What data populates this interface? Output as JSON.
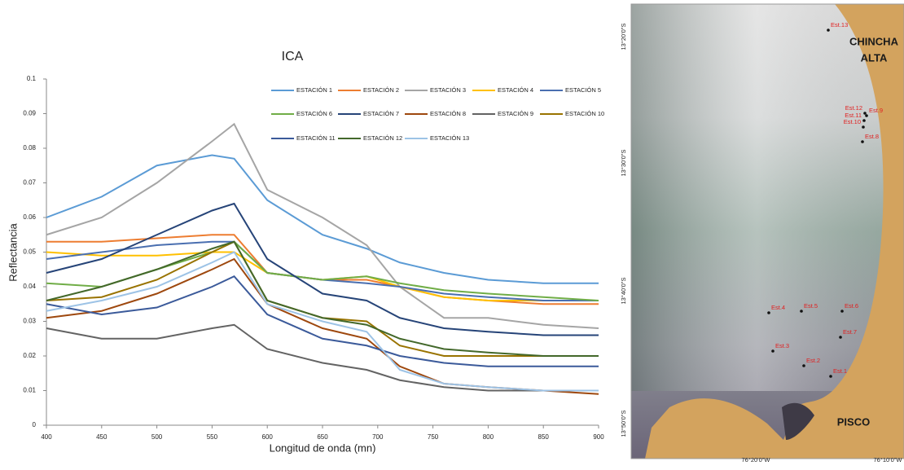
{
  "chart_data": {
    "type": "line",
    "title": "ICA",
    "xlabel": "Longitud de onda (mn)",
    "ylabel": "Reflectancia",
    "x": [
      400,
      450,
      500,
      550,
      570,
      600,
      650,
      690,
      720,
      760,
      800,
      850,
      900
    ],
    "xlim": [
      400,
      900
    ],
    "xticks": [
      400,
      450,
      500,
      550,
      600,
      650,
      700,
      750,
      800,
      850,
      900
    ],
    "ylim": [
      0,
      0.1
    ],
    "yticks": [
      0,
      0.01,
      0.02,
      0.03,
      0.04,
      0.05,
      0.06,
      0.07,
      0.08,
      0.09,
      0.1
    ],
    "series": [
      {
        "name": "ESTACIÓN 1",
        "color": "#5b9bd5",
        "values": [
          0.06,
          0.066,
          0.075,
          0.078,
          0.077,
          0.065,
          0.055,
          0.051,
          0.047,
          0.044,
          0.042,
          0.041,
          0.041
        ]
      },
      {
        "name": "ESTACIÓN 2",
        "color": "#ed7d31",
        "values": [
          0.053,
          0.053,
          0.054,
          0.055,
          0.055,
          0.044,
          0.042,
          0.042,
          0.04,
          0.037,
          0.036,
          0.035,
          0.035
        ]
      },
      {
        "name": "ESTACIÓN 3",
        "color": "#a5a5a5",
        "values": [
          0.055,
          0.06,
          0.07,
          0.082,
          0.087,
          0.068,
          0.06,
          0.052,
          0.04,
          0.031,
          0.031,
          0.029,
          0.028
        ]
      },
      {
        "name": "ESTACIÓN 4",
        "color": "#ffc000",
        "values": [
          0.05,
          0.049,
          0.049,
          0.05,
          0.05,
          0.044,
          0.042,
          0.043,
          0.04,
          0.037,
          0.036,
          0.036,
          0.036
        ]
      },
      {
        "name": "ESTACIÓN 5",
        "color": "#4a6fb0",
        "values": [
          0.048,
          0.05,
          0.052,
          0.053,
          0.053,
          0.044,
          0.042,
          0.041,
          0.04,
          0.038,
          0.037,
          0.036,
          0.036
        ]
      },
      {
        "name": "ESTACIÓN 6",
        "color": "#70ad47",
        "values": [
          0.041,
          0.04,
          0.045,
          0.05,
          0.053,
          0.044,
          0.042,
          0.043,
          0.041,
          0.039,
          0.038,
          0.037,
          0.036
        ]
      },
      {
        "name": "ESTACIÓN 7",
        "color": "#264478",
        "values": [
          0.044,
          0.048,
          0.055,
          0.062,
          0.064,
          0.048,
          0.038,
          0.036,
          0.031,
          0.028,
          0.027,
          0.026,
          0.026
        ]
      },
      {
        "name": "ESTACIÓN 8",
        "color": "#9e480e",
        "values": [
          0.031,
          0.033,
          0.038,
          0.045,
          0.048,
          0.035,
          0.028,
          0.025,
          0.017,
          0.012,
          0.011,
          0.01,
          0.009
        ]
      },
      {
        "name": "ESTACIÓN 9",
        "color": "#636363",
        "values": [
          0.028,
          0.025,
          0.025,
          0.028,
          0.029,
          0.022,
          0.018,
          0.016,
          0.013,
          0.011,
          0.01,
          0.01,
          0.01
        ]
      },
      {
        "name": "ESTACIÓN 10",
        "color": "#997300",
        "values": [
          0.036,
          0.037,
          0.042,
          0.05,
          0.053,
          0.036,
          0.031,
          0.03,
          0.023,
          0.02,
          0.02,
          0.02,
          0.02
        ]
      },
      {
        "name": "ESTACIÓN 11",
        "color": "#3b5a9a",
        "values": [
          0.035,
          0.032,
          0.034,
          0.04,
          0.043,
          0.032,
          0.025,
          0.023,
          0.02,
          0.018,
          0.017,
          0.017,
          0.017
        ]
      },
      {
        "name": "ESTACIÓN 12",
        "color": "#43682b",
        "values": [
          0.036,
          0.04,
          0.045,
          0.051,
          0.053,
          0.036,
          0.031,
          0.029,
          0.025,
          0.022,
          0.021,
          0.02,
          0.02
        ]
      },
      {
        "name": "ESTACIÓN 13",
        "color": "#9dc3e6",
        "values": [
          0.033,
          0.036,
          0.04,
          0.047,
          0.05,
          0.035,
          0.03,
          0.027,
          0.016,
          0.012,
          0.011,
          0.01,
          0.01
        ]
      }
    ]
  },
  "map": {
    "places": [
      "CHINCHA",
      "ALTA",
      "PISCO"
    ],
    "lat_labels": [
      "13°20'0\"S",
      "13°30'0\"S",
      "13°40'0\"S",
      "13°50'0\"S"
    ],
    "lon_labels": [
      "76°20'0\"W",
      "76°10'0\"W"
    ],
    "stations": [
      "Est.1",
      "Est.2",
      "Est.3",
      "Est.4",
      "Est.5",
      "Est.6",
      "Est.7",
      "Est.8",
      "Est.9",
      "Est.10",
      "Est.11",
      "Est.12",
      "Est.13"
    ]
  }
}
